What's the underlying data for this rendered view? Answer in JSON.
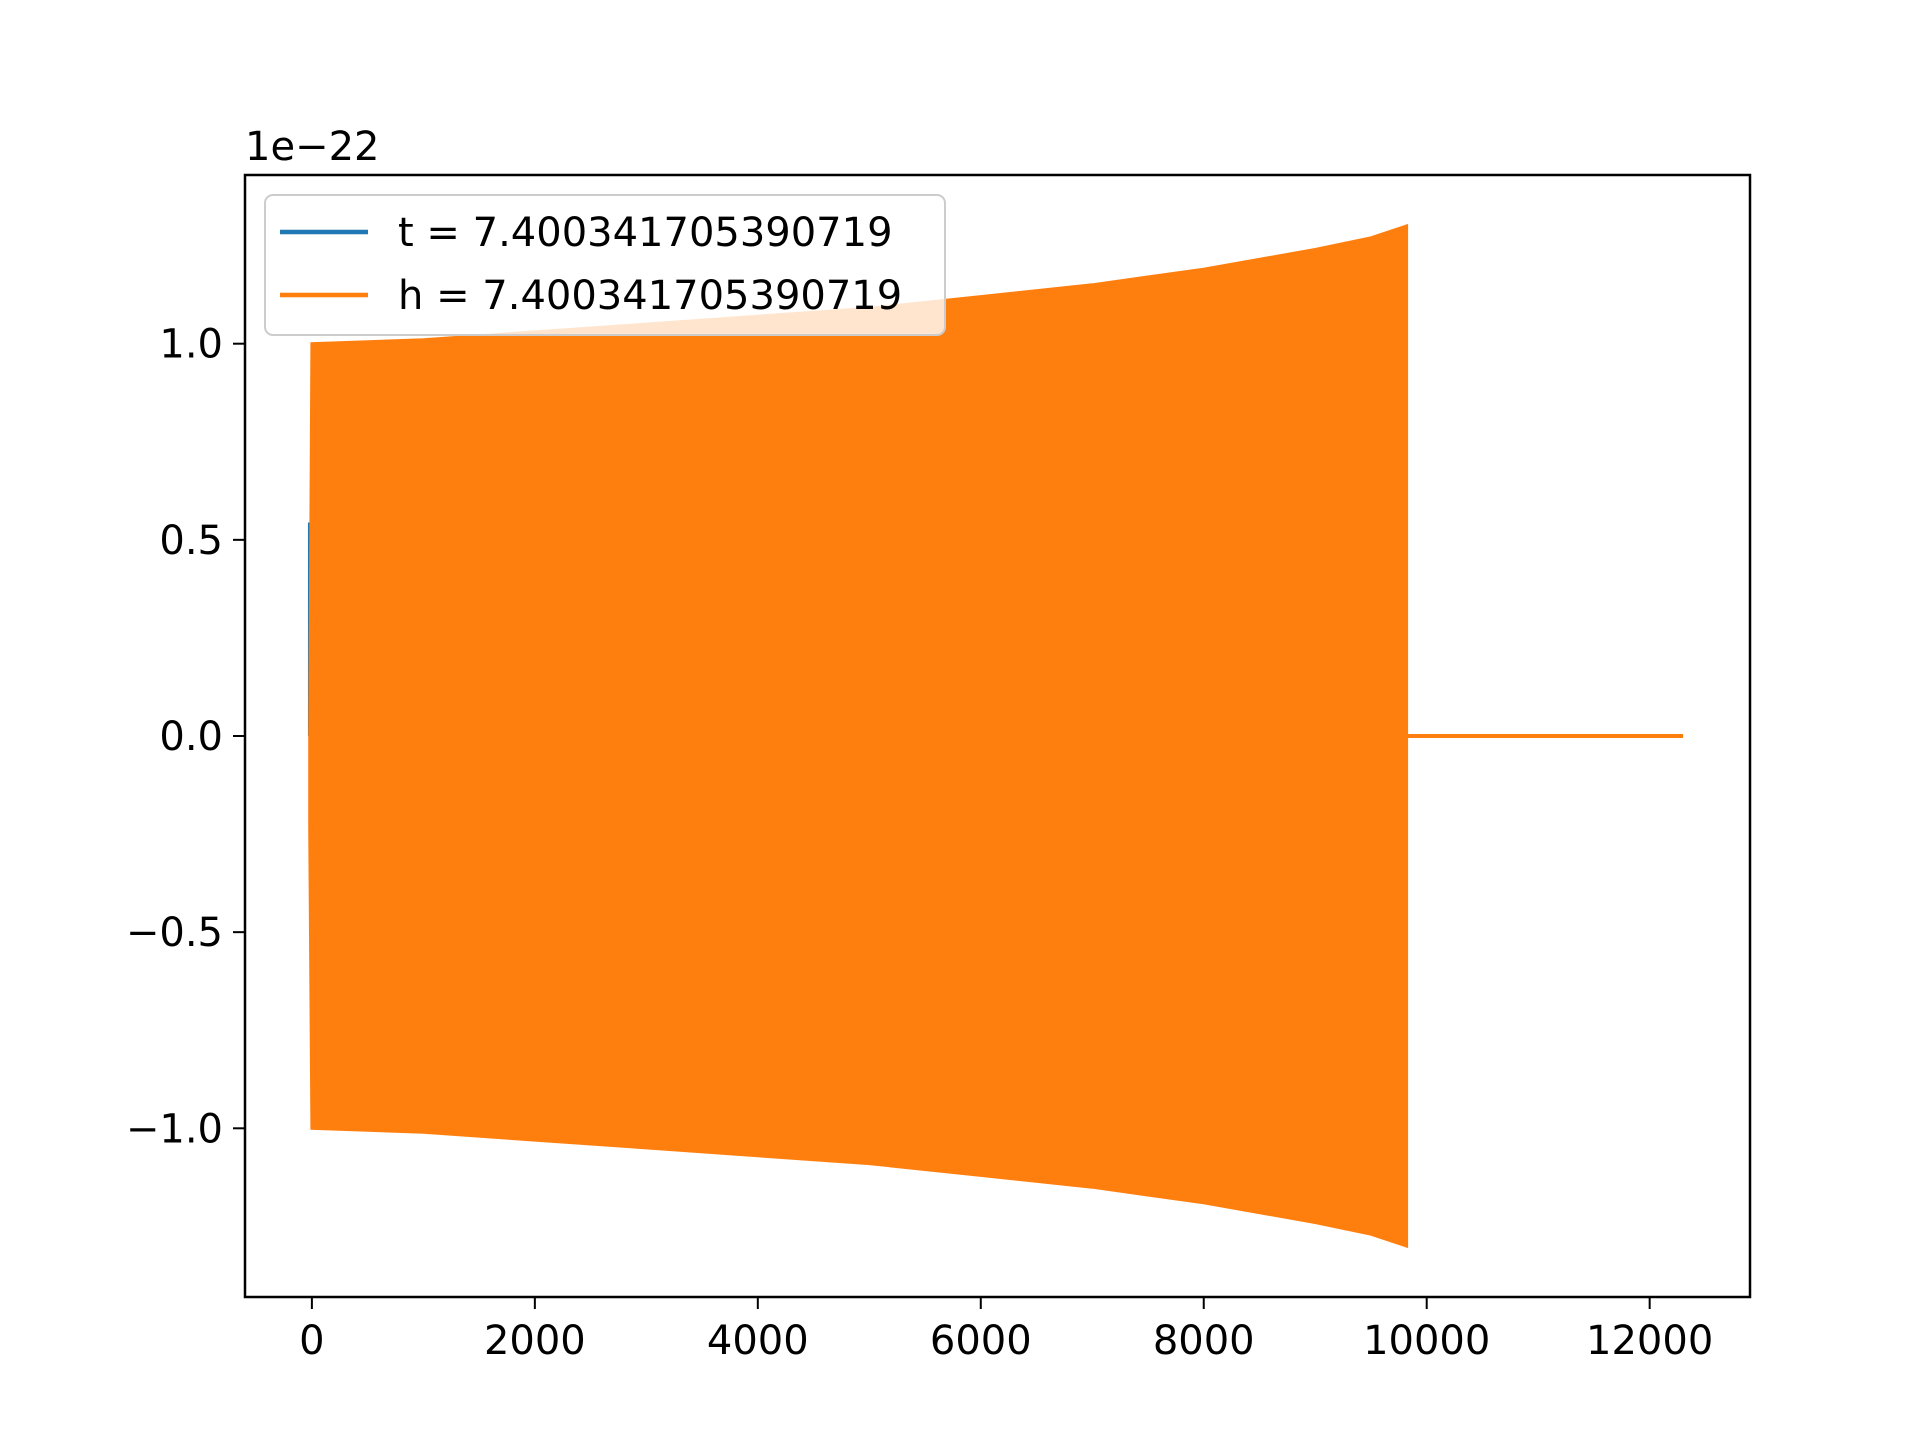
{
  "chart_data": {
    "type": "line",
    "title": "",
    "xlabel": "",
    "ylabel": "",
    "y_offset_text": "1e−22",
    "xlim": [
      -600,
      12900
    ],
    "ylim": [
      -1.43,
      1.43
    ],
    "x_ticks": [
      {
        "value": 0,
        "label": "0"
      },
      {
        "value": 2000,
        "label": "2000"
      },
      {
        "value": 4000,
        "label": "4000"
      },
      {
        "value": 6000,
        "label": "6000"
      },
      {
        "value": 8000,
        "label": "8000"
      },
      {
        "value": 10000,
        "label": "10000"
      },
      {
        "value": 12000,
        "label": "12000"
      }
    ],
    "y_ticks": [
      {
        "value": 1.0,
        "label": "1.0"
      },
      {
        "value": 0.5,
        "label": "0.5"
      },
      {
        "value": 0.0,
        "label": "0.0"
      },
      {
        "value": -0.5,
        "label": "−0.5"
      },
      {
        "value": -1.0,
        "label": "−1.0"
      }
    ],
    "grid": false,
    "legend_position": "top-left",
    "series": [
      {
        "name": "t = 7.400341705390719",
        "color": "#1f77b4",
        "segments": [
          {
            "x": [
              -20,
              -20,
              0,
              0
            ],
            "y": [
              0.0,
              0.54,
              0.54,
              0.0
            ]
          }
        ]
      },
      {
        "name": "h = 7.400341705390719",
        "color": "#ff7f0e",
        "envelope": {
          "x": [
            -20,
            0,
            1000,
            2000,
            3000,
            4000,
            5000,
            6000,
            7000,
            8000,
            9000,
            9500,
            9820
          ],
          "upper": [
            0.0,
            1.0,
            1.01,
            1.03,
            1.05,
            1.07,
            1.09,
            1.12,
            1.15,
            1.19,
            1.24,
            1.27,
            1.3
          ],
          "lower": [
            -0.23,
            -1.0,
            -1.01,
            -1.03,
            -1.05,
            -1.07,
            -1.09,
            -1.12,
            -1.15,
            -1.19,
            -1.24,
            -1.27,
            -1.3
          ]
        },
        "flat_tail": {
          "x": [
            9820,
            12300
          ],
          "y": [
            0.0,
            0.0
          ]
        }
      }
    ]
  }
}
